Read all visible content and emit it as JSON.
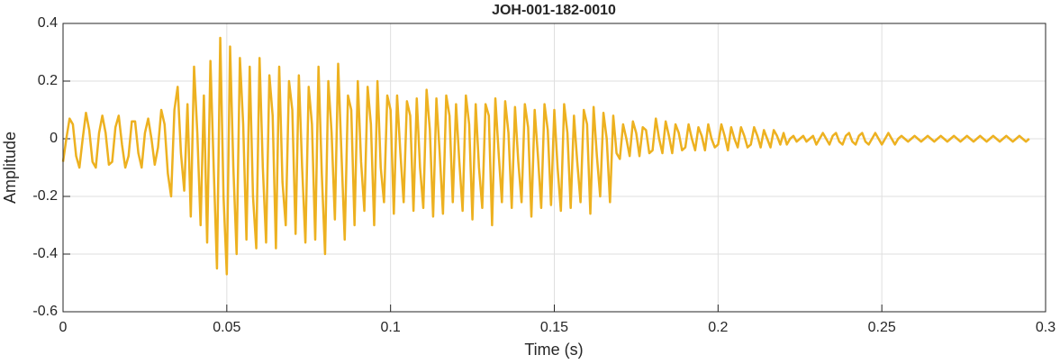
{
  "chart_data": {
    "type": "line",
    "title": "JOH-001-182-0010",
    "xlabel": "Time (s)",
    "ylabel": "Amplitude",
    "color": "#EDB120",
    "grid": true,
    "xlim": [
      0,
      0.3
    ],
    "xticks": [
      0,
      0.05,
      0.1,
      0.15,
      0.2,
      0.25,
      0.3
    ],
    "ylim": [
      -0.6,
      0.4
    ],
    "yticks": [
      -0.6,
      -0.4,
      -0.2,
      0,
      0.2,
      0.4
    ],
    "x": [
      0,
      0.001,
      0.002,
      0.003,
      0.004,
      0.005,
      0.006,
      0.007,
      0.008,
      0.009,
      0.01,
      0.011,
      0.012,
      0.013,
      0.014,
      0.015,
      0.016,
      0.017,
      0.018,
      0.019,
      0.02,
      0.021,
      0.022,
      0.023,
      0.024,
      0.025,
      0.026,
      0.027,
      0.028,
      0.029,
      0.03,
      0.031,
      0.032,
      0.033,
      0.034,
      0.035,
      0.036,
      0.037,
      0.038,
      0.039,
      0.04,
      0.041,
      0.042,
      0.043,
      0.044,
      0.045,
      0.046,
      0.047,
      0.048,
      0.049,
      0.05,
      0.051,
      0.052,
      0.053,
      0.054,
      0.055,
      0.056,
      0.057,
      0.058,
      0.059,
      0.06,
      0.061,
      0.062,
      0.063,
      0.064,
      0.065,
      0.066,
      0.067,
      0.068,
      0.069,
      0.07,
      0.071,
      0.072,
      0.073,
      0.074,
      0.075,
      0.076,
      0.077,
      0.078,
      0.079,
      0.08,
      0.081,
      0.082,
      0.083,
      0.084,
      0.085,
      0.086,
      0.087,
      0.088,
      0.089,
      0.09,
      0.091,
      0.092,
      0.093,
      0.094,
      0.095,
      0.096,
      0.097,
      0.098,
      0.099,
      0.1,
      0.101,
      0.102,
      0.103,
      0.104,
      0.105,
      0.106,
      0.107,
      0.108,
      0.109,
      0.11,
      0.111,
      0.112,
      0.113,
      0.114,
      0.115,
      0.116,
      0.117,
      0.118,
      0.119,
      0.12,
      0.121,
      0.122,
      0.123,
      0.124,
      0.125,
      0.126,
      0.127,
      0.128,
      0.129,
      0.13,
      0.131,
      0.132,
      0.133,
      0.134,
      0.135,
      0.136,
      0.137,
      0.138,
      0.139,
      0.14,
      0.141,
      0.142,
      0.143,
      0.144,
      0.145,
      0.146,
      0.147,
      0.148,
      0.149,
      0.15,
      0.151,
      0.152,
      0.153,
      0.154,
      0.155,
      0.156,
      0.157,
      0.158,
      0.159,
      0.16,
      0.161,
      0.162,
      0.163,
      0.164,
      0.165,
      0.166,
      0.167,
      0.168,
      0.169,
      0.17,
      0.171,
      0.172,
      0.173,
      0.174,
      0.175,
      0.176,
      0.177,
      0.178,
      0.179,
      0.18,
      0.181,
      0.182,
      0.183,
      0.184,
      0.185,
      0.186,
      0.187,
      0.188,
      0.189,
      0.19,
      0.191,
      0.192,
      0.193,
      0.194,
      0.195,
      0.196,
      0.197,
      0.198,
      0.199,
      0.2,
      0.201,
      0.202,
      0.203,
      0.204,
      0.205,
      0.206,
      0.207,
      0.208,
      0.209,
      0.21,
      0.211,
      0.212,
      0.213,
      0.214,
      0.215,
      0.216,
      0.217,
      0.218,
      0.219,
      0.22,
      0.221,
      0.222,
      0.223,
      0.224,
      0.225,
      0.226,
      0.227,
      0.228,
      0.229,
      0.23,
      0.231,
      0.232,
      0.233,
      0.234,
      0.235,
      0.236,
      0.237,
      0.238,
      0.239,
      0.24,
      0.241,
      0.242,
      0.243,
      0.244,
      0.245,
      0.246,
      0.247,
      0.248,
      0.249,
      0.25,
      0.251,
      0.252,
      0.253,
      0.254,
      0.255,
      0.256,
      0.257,
      0.258,
      0.259,
      0.26,
      0.261,
      0.262,
      0.263,
      0.264,
      0.265,
      0.266,
      0.267,
      0.268,
      0.269,
      0.27,
      0.271,
      0.272,
      0.273,
      0.274,
      0.275,
      0.276,
      0.277,
      0.278,
      0.279,
      0.28,
      0.281,
      0.282,
      0.283,
      0.284,
      0.285,
      0.286,
      0.287,
      0.288,
      0.289,
      0.29,
      0.291,
      0.292,
      0.293,
      0.294,
      0.295
    ],
    "values": [
      -0.08,
      0.0,
      0.07,
      0.05,
      -0.06,
      -0.1,
      0.0,
      0.09,
      0.03,
      -0.08,
      -0.1,
      0.02,
      0.08,
      0.02,
      -0.09,
      -0.08,
      0.04,
      0.08,
      -0.02,
      -0.1,
      -0.06,
      0.06,
      0.06,
      -0.05,
      -0.1,
      0.02,
      0.07,
      0.0,
      -0.09,
      -0.03,
      0.1,
      0.05,
      -0.12,
      -0.2,
      0.1,
      0.18,
      -0.05,
      -0.18,
      0.12,
      -0.27,
      0.25,
      0.02,
      -0.3,
      0.15,
      -0.36,
      0.27,
      -0.1,
      -0.45,
      0.35,
      -0.2,
      -0.47,
      0.32,
      -0.1,
      -0.4,
      0.28,
      0.05,
      -0.35,
      0.25,
      -0.2,
      -0.38,
      0.28,
      -0.1,
      -0.36,
      0.22,
      0.08,
      -0.38,
      0.25,
      -0.15,
      -0.3,
      0.2,
      0.1,
      -0.33,
      0.22,
      -0.1,
      -0.36,
      0.18,
      0.05,
      -0.35,
      0.25,
      -0.12,
      -0.4,
      0.2,
      0.02,
      -0.28,
      0.26,
      -0.05,
      -0.35,
      0.15,
      0.1,
      -0.3,
      0.2,
      -0.08,
      -0.25,
      0.18,
      0.05,
      -0.3,
      0.2,
      -0.1,
      -0.22,
      0.15,
      0.1,
      -0.26,
      0.15,
      -0.05,
      -0.22,
      0.13,
      0.08,
      -0.25,
      0.14,
      -0.1,
      -0.24,
      0.17,
      0.03,
      -0.27,
      0.14,
      -0.05,
      -0.26,
      0.15,
      0.08,
      -0.22,
      0.12,
      -0.08,
      -0.25,
      0.15,
      0.05,
      -0.28,
      0.12,
      -0.1,
      -0.24,
      0.12,
      0.08,
      -0.3,
      0.14,
      -0.05,
      -0.22,
      0.13,
      0.02,
      -0.24,
      0.11,
      -0.08,
      -0.22,
      0.12,
      0.04,
      -0.27,
      0.1,
      -0.06,
      -0.24,
      0.12,
      0.03,
      -0.23,
      0.1,
      -0.1,
      -0.25,
      0.12,
      0.02,
      -0.24,
      0.08,
      -0.08,
      -0.22,
      0.1,
      0.05,
      -0.26,
      0.11,
      -0.06,
      -0.2,
      0.09,
      0.0,
      -0.22,
      0.08,
      -0.05,
      -0.07,
      0.05,
      0.0,
      -0.06,
      0.06,
      0.02,
      -0.06,
      0.04,
      0.03,
      -0.05,
      -0.04,
      0.07,
      0.0,
      -0.05,
      0.06,
      0.01,
      -0.05,
      0.05,
      0.02,
      -0.04,
      -0.03,
      0.05,
      0.0,
      -0.04,
      0.04,
      0.01,
      -0.04,
      0.05,
      0.0,
      -0.03,
      -0.02,
      0.05,
      0.01,
      -0.04,
      0.04,
      0.0,
      -0.03,
      0.04,
      0.01,
      -0.03,
      -0.02,
      0.04,
      0.01,
      -0.03,
      0.03,
      0.0,
      -0.03,
      0.03,
      0.01,
      -0.02,
      0.02,
      -0.02,
      0.0,
      0.01,
      -0.01,
      0.0,
      0.01,
      -0.01,
      0.0,
      0.01,
      -0.02,
      0.0,
      0.02,
      0.0,
      -0.02,
      0.01,
      0.02,
      -0.01,
      -0.02,
      0.01,
      0.02,
      -0.01,
      -0.02,
      0.01,
      0.02,
      -0.01,
      -0.02,
      0.0,
      0.02,
      0.0,
      -0.02,
      0.0,
      0.02,
      0.0,
      -0.02,
      0.0,
      0.01,
      0.0,
      -0.01,
      0.0,
      0.01,
      0.0,
      -0.01,
      0.0,
      0.01,
      0.0,
      -0.01,
      0.0,
      0.01,
      0.0,
      -0.01,
      0.0,
      0.01,
      0.0,
      -0.01,
      0.0,
      0.01,
      0.0,
      -0.01,
      0.0,
      0.01,
      0.0,
      -0.01,
      0.0,
      0.01,
      0.0,
      -0.01,
      0.0,
      0.01,
      0.0,
      -0.01,
      0.0,
      0.01,
      0.0,
      -0.01,
      0.0
    ]
  }
}
